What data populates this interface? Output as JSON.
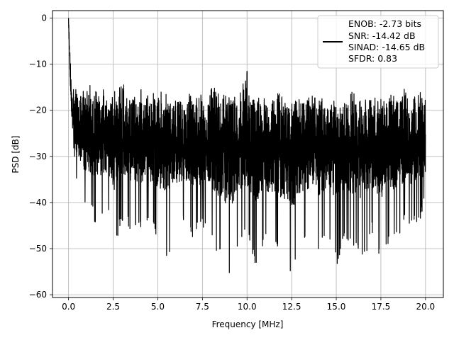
{
  "chart_data": {
    "type": "line",
    "title": "",
    "xlabel": "Frequency [MHz]",
    "ylabel": "PSD [dB]",
    "xlim": [
      -0.9,
      21.0
    ],
    "ylim": [
      -60.6,
      1.6
    ],
    "xticks": [
      0.0,
      2.5,
      5.0,
      7.5,
      10.0,
      12.5,
      15.0,
      17.5,
      20.0
    ],
    "xtick_labels": [
      "0.0",
      "2.5",
      "5.0",
      "7.5",
      "10.0",
      "12.5",
      "15.0",
      "17.5",
      "20.0"
    ],
    "yticks": [
      0,
      -10,
      -20,
      -30,
      -40,
      -50,
      -60
    ],
    "ytick_labels": [
      "0",
      "−10",
      "−20",
      "−30",
      "−40",
      "−50",
      "−60"
    ],
    "grid": true,
    "legend_position": "top-right",
    "legend_entries": [
      "ENOB: -2.73 bits",
      "SNR: -14.42 dB",
      "SINAD: -14.65 dB",
      "SFDR: 0.83"
    ],
    "series": [
      {
        "color": "#000000",
        "x": [
          0.0,
          0.1,
          0.2,
          0.3,
          0.4,
          0.6,
          0.8,
          1.0,
          1.25,
          1.5,
          1.75,
          2.0,
          2.25,
          2.5,
          2.75,
          3.0,
          3.5,
          4.0,
          4.5,
          5.0,
          5.5,
          6.0,
          6.5,
          7.0,
          7.5,
          8.0,
          8.5,
          9.0,
          9.5,
          10.0,
          10.5,
          11.0,
          11.5,
          12.0,
          12.5,
          13.0,
          13.5,
          14.0,
          14.5,
          15.0,
          15.5,
          16.0,
          16.5,
          17.0,
          17.5,
          18.0,
          18.5,
          19.0,
          19.5,
          20.0
        ],
        "peak": [
          0.0,
          -8.0,
          -12.0,
          -13.5,
          -15.0,
          -15.5,
          -15.0,
          -15.5,
          -14.0,
          -16.0,
          -14.5,
          -15.5,
          -17.0,
          -16.0,
          -15.0,
          -14.0,
          -16.5,
          -15.0,
          -17.0,
          -15.5,
          -16.0,
          -16.5,
          -17.0,
          -15.5,
          -16.5,
          -14.5,
          -16.5,
          -17.0,
          -16.0,
          -11.5,
          -16.0,
          -17.5,
          -15.5,
          -17.0,
          -18.0,
          -16.5,
          -17.0,
          -16.5,
          -18.5,
          -17.5,
          -17.0,
          -15.5,
          -16.5,
          -17.0,
          -17.5,
          -16.5,
          -16.0,
          -15.0,
          -16.0,
          -15.0
        ],
        "trough": [
          -2.0,
          -18.0,
          -28.0,
          -30.0,
          -35.0,
          -38.0,
          -40.0,
          -43.0,
          -42.0,
          -45.0,
          -44.0,
          -43.0,
          -42.5,
          -50.5,
          -48.0,
          -44.0,
          -46.0,
          -47.0,
          -45.0,
          -48.0,
          -52.5,
          -47.0,
          -45.0,
          -48.0,
          -45.5,
          -48.0,
          -52.5,
          -57.5,
          -51.5,
          -47.5,
          -54.5,
          -48.0,
          -51.0,
          -52.0,
          -57.5,
          -49.5,
          -47.0,
          -51.0,
          -47.0,
          -54.0,
          -48.0,
          -50.0,
          -53.0,
          -47.0,
          -52.5,
          -48.0,
          -47.0,
          -45.0,
          -46.0,
          -41.0
        ],
        "center": [
          -1.0,
          -14.0,
          -20.0,
          -22.0,
          -24.0,
          -25.5,
          -26.0,
          -26.5,
          -26.5,
          -27.0,
          -27.0,
          -27.0,
          -27.0,
          -27.5,
          -27.0,
          -26.5,
          -27.0,
          -27.0,
          -27.5,
          -27.5,
          -27.5,
          -27.0,
          -27.5,
          -27.5,
          -28.0,
          -27.5,
          -28.0,
          -28.0,
          -28.0,
          -27.5,
          -28.5,
          -28.5,
          -28.0,
          -28.5,
          -29.0,
          -28.5,
          -28.5,
          -28.5,
          -29.0,
          -29.0,
          -28.5,
          -28.5,
          -28.5,
          -28.5,
          -29.0,
          -28.5,
          -28.5,
          -28.0,
          -28.5,
          -28.0
        ]
      }
    ]
  }
}
